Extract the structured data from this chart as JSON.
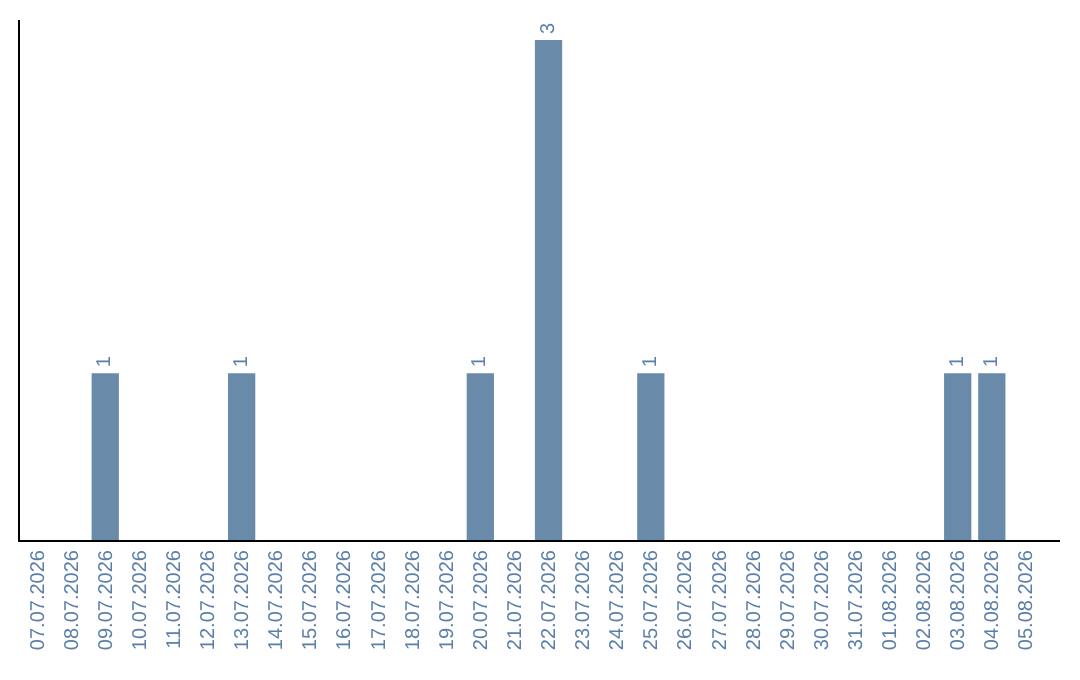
{
  "chart_data": {
    "type": "bar",
    "categories": [
      "07.07.2026",
      "08.07.2026",
      "09.07.2026",
      "10.07.2026",
      "11.07.2026",
      "12.07.2026",
      "13.07.2026",
      "14.07.2026",
      "15.07.2026",
      "16.07.2026",
      "17.07.2026",
      "18.07.2026",
      "19.07.2026",
      "20.07.2026",
      "21.07.2026",
      "22.07.2026",
      "23.07.2026",
      "24.07.2026",
      "25.07.2026",
      "26.07.2026",
      "27.07.2026",
      "28.07.2026",
      "29.07.2026",
      "30.07.2026",
      "31.07.2026",
      "01.08.2026",
      "02.08.2026",
      "03.08.2026",
      "04.08.2026",
      "05.08.2026"
    ],
    "values": [
      0,
      0,
      1,
      0,
      0,
      0,
      1,
      0,
      0,
      0,
      0,
      0,
      0,
      1,
      0,
      3,
      0,
      0,
      1,
      0,
      0,
      0,
      0,
      0,
      0,
      0,
      0,
      1,
      1,
      0
    ],
    "value_labels": [
      null,
      null,
      "1",
      null,
      null,
      null,
      "1",
      null,
      null,
      null,
      null,
      null,
      null,
      "1",
      null,
      "3",
      null,
      null,
      "1",
      null,
      null,
      null,
      null,
      null,
      null,
      null,
      null,
      "1",
      "1",
      null
    ],
    "color": "#6a8aaa",
    "ylim": [
      0,
      3.12
    ],
    "tick_labels": "x"
  }
}
